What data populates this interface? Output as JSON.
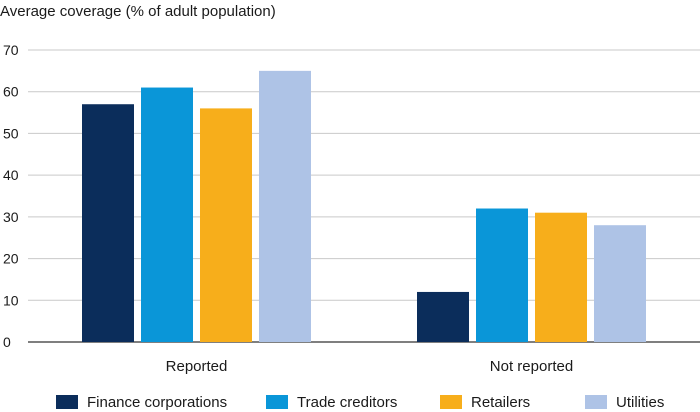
{
  "chart_data": {
    "type": "bar",
    "ylabel": "Average coverage (% of adult population)",
    "categories": [
      "Reported",
      "Not reported"
    ],
    "ylim": [
      0,
      70
    ],
    "yticks": [
      0,
      10,
      20,
      30,
      40,
      50,
      60,
      70
    ],
    "grid": true,
    "legend_position": "bottom",
    "series": [
      {
        "name": "Finance corporations",
        "values": [
          57,
          12
        ],
        "color": "#0b2d5b"
      },
      {
        "name": "Trade creditors",
        "values": [
          61,
          32
        ],
        "color": "#0a96d8"
      },
      {
        "name": "Retailers",
        "values": [
          56,
          31
        ],
        "color": "#f7ae1b"
      },
      {
        "name": "Utilities",
        "values": [
          65,
          28
        ],
        "color": "#aec3e6"
      }
    ]
  }
}
